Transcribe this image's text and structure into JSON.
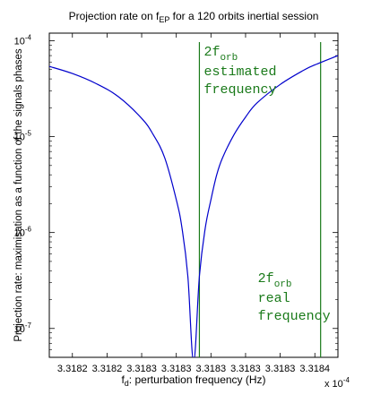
{
  "chart_data": {
    "type": "line",
    "title_main": "Projection rate on f",
    "title_sub": "EP",
    "title_rest": " for a 120 orbits inertial session",
    "xlabel_main": "f",
    "xlabel_sub": "d",
    "xlabel_rest": ": perturbation frequency (Hz)",
    "ylabel": "Projection rate: maximisation as a function of the signals phases",
    "x_multiplier": "x 10",
    "x_multiplier_exp": "-4",
    "x_scale": 0.0001,
    "y_scale": "log",
    "ylim": [
      5e-08,
      0.00012
    ],
    "xlim": [
      3.31817,
      3.31842
    ],
    "x_ticks": [
      3.31819,
      3.31822,
      3.31825,
      3.31828,
      3.31831,
      3.31834,
      3.31837,
      3.3184
    ],
    "x_tick_labels": [
      "3.3182",
      "3.3182",
      "3.3183",
      "3.3183",
      "3.3183",
      "3.3183",
      "3.3183",
      "3.3184"
    ],
    "y_ticks": [
      1e-07,
      1e-06,
      1e-05,
      0.0001
    ],
    "y_tick_labels": [
      {
        "base": "10",
        "exp": "-7"
      },
      {
        "base": "10",
        "exp": "-6"
      },
      {
        "base": "10",
        "exp": "-5"
      },
      {
        "base": "10",
        "exp": "-4"
      }
    ],
    "series": [
      {
        "color": "#0000cc",
        "x": [
          3.31817,
          3.31819,
          3.31821,
          3.31823,
          3.31825,
          3.31826,
          3.31827,
          3.31828,
          3.318285,
          3.31829,
          3.318295,
          3.3183,
          3.318305,
          3.31831,
          3.318315,
          3.31832,
          3.31833,
          3.31834,
          3.31835,
          3.31837,
          3.31839,
          3.3184,
          3.31842
        ],
        "y": [
          5.4e-05,
          4.55e-05,
          3.6e-05,
          2.6e-05,
          1.55e-05,
          1.05e-05,
          6e-06,
          2.2e-06,
          1.1e-06,
          3.5e-07,
          4.5e-08,
          3.5e-07,
          1.1e-06,
          2.2e-06,
          4e-06,
          6e-06,
          1.05e-05,
          1.6e-05,
          2.25e-05,
          3.5e-05,
          4.9e-05,
          5.6e-05,
          7e-05
        ]
      }
    ],
    "vlines": [
      {
        "x": 3.3183,
        "color": "#1a7a1a",
        "label_main": "2f",
        "label_sub": "orb",
        "label_lines": [
          "estimated",
          "frequency"
        ]
      },
      {
        "x": 3.318405,
        "color": "#1a7a1a",
        "label_main": "2f",
        "label_sub": "orb",
        "label_lines": [
          "real",
          "frequency"
        ]
      }
    ]
  }
}
